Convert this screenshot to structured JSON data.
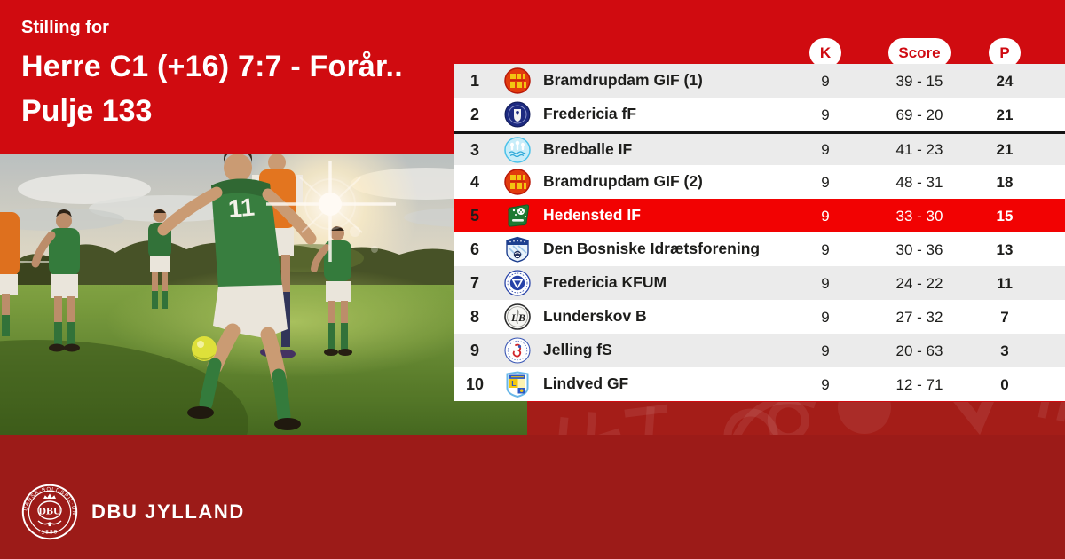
{
  "colors": {
    "red_top": "#d00b10",
    "red_highlight": "#f20202",
    "red_footer": "#9c1b18",
    "watermark_glyph": "rgba(255,255,255,0.08)",
    "pill_text": "#cf0a11",
    "row_gray": "#ebebeb",
    "row_white": "#ffffff",
    "text_dark": "#1d1d1b",
    "divider": "#141414"
  },
  "header": {
    "eyebrow": "Stilling for",
    "title_line1": "Herre C1 (+16) 7:7 - Forår..",
    "title_line2": "Pulje 133"
  },
  "standings": {
    "columns": {
      "matches": "K",
      "score": "Score",
      "points": "P"
    },
    "rows": [
      {
        "pos": "1",
        "club": "Bramdrupdam GIF (1)",
        "logo": "bramdrupdam",
        "k": "9",
        "score": "39 - 15",
        "p": "24",
        "highlight": false,
        "divider_above": false
      },
      {
        "pos": "2",
        "club": "Fredericia fF",
        "logo": "fredericia_ff",
        "k": "9",
        "score": "69 - 20",
        "p": "21",
        "highlight": false,
        "divider_above": false
      },
      {
        "pos": "3",
        "club": "Bredballe IF",
        "logo": "bredballe",
        "k": "9",
        "score": "41 - 23",
        "p": "21",
        "highlight": false,
        "divider_above": true
      },
      {
        "pos": "4",
        "club": "Bramdrupdam GIF (2)",
        "logo": "bramdrupdam",
        "k": "9",
        "score": "48 - 31",
        "p": "18",
        "highlight": false,
        "divider_above": false
      },
      {
        "pos": "5",
        "club": "Hedensted IF",
        "logo": "hedensted",
        "k": "9",
        "score": "33 - 30",
        "p": "15",
        "highlight": true,
        "divider_above": false
      },
      {
        "pos": "6",
        "club": "Den Bosniske Idrætsforening",
        "logo": "bosniske",
        "k": "9",
        "score": "30 - 36",
        "p": "13",
        "highlight": false,
        "divider_above": false
      },
      {
        "pos": "7",
        "club": "Fredericia KFUM",
        "logo": "kfum",
        "k": "9",
        "score": "24 - 22",
        "p": "11",
        "highlight": false,
        "divider_above": false
      },
      {
        "pos": "8",
        "club": "Lunderskov B",
        "logo": "lunderskov",
        "k": "9",
        "score": "27 - 32",
        "p": "7",
        "highlight": false,
        "divider_above": false
      },
      {
        "pos": "9",
        "club": "Jelling fS",
        "logo": "jelling",
        "k": "9",
        "score": "20 - 63",
        "p": "3",
        "highlight": false,
        "divider_above": false
      },
      {
        "pos": "10",
        "club": "Lindved GF",
        "logo": "lindved",
        "k": "9",
        "score": "12 - 71",
        "p": "0",
        "highlight": false,
        "divider_above": false
      }
    ]
  },
  "footer": {
    "brand": "DBU JYLLAND",
    "crest_text_top": "DANSK·BOLDSPIL·UNION",
    "crest_text_center": "DBU",
    "crest_text_bottom": "·1889·"
  },
  "photo": {
    "alt": "football-players-on-pitch"
  }
}
